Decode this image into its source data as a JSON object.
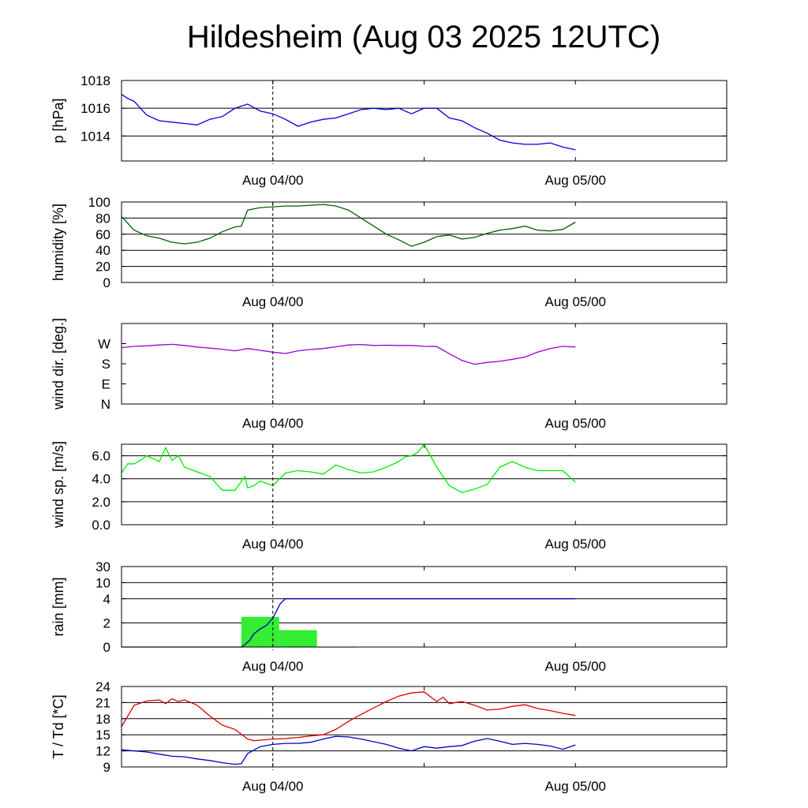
{
  "title": "Hildesheim (Aug 03 2025 12UTC)",
  "colors": {
    "pressure": "#0000dd",
    "humidity": "#006400",
    "wind_dir": "#9900cc",
    "wind_speed": "#00ee00",
    "rain_bar": "#33ee33",
    "rain_line": "#0000aa",
    "temperature": "#dd0000",
    "dewpoint": "#0000cc"
  },
  "chart_data": [
    {
      "type": "line",
      "ylabel": "p [hPa]",
      "ylim": [
        1012.2,
        1018
      ],
      "yticks": [
        "1018",
        "1016",
        "1014"
      ],
      "xticks": [
        "Aug 04/00",
        "Aug 05/00"
      ],
      "xlim_hours": [
        -12,
        36
      ],
      "series": [
        {
          "key": "pressure",
          "x": [
            -12,
            -11.5,
            -11,
            -10.5,
            -10,
            -9,
            -8,
            -7,
            -6,
            -5,
            -4,
            -3,
            -2,
            -1,
            0,
            1,
            2,
            3,
            4,
            5,
            6,
            7,
            8,
            9,
            10,
            11,
            12,
            13,
            14,
            15,
            16,
            17,
            18,
            19,
            20,
            21,
            22,
            23,
            24
          ],
          "values": [
            1017.0,
            1016.7,
            1016.5,
            1016.0,
            1015.5,
            1015.1,
            1015.0,
            1014.9,
            1014.8,
            1015.2,
            1015.4,
            1016.0,
            1016.3,
            1015.8,
            1015.6,
            1015.2,
            1014.7,
            1015.0,
            1015.2,
            1015.3,
            1015.6,
            1015.9,
            1016.0,
            1015.9,
            1016.0,
            1015.6,
            1016.0,
            1016.0,
            1015.3,
            1015.1,
            1014.6,
            1014.2,
            1013.7,
            1013.5,
            1013.4,
            1013.4,
            1013.5,
            1013.2,
            1013.0
          ]
        }
      ]
    },
    {
      "type": "line",
      "ylabel": "humidity [%]",
      "ylim": [
        0,
        100
      ],
      "yticks": [
        "100",
        "80",
        "60",
        "40",
        "20",
        "0"
      ],
      "xticks": [
        "Aug 04/00",
        "Aug 05/00"
      ],
      "xlim_hours": [
        -12,
        36
      ],
      "series": [
        {
          "key": "humidity",
          "x": [
            -12,
            -11,
            -10,
            -9,
            -8,
            -7,
            -6,
            -5,
            -4,
            -3,
            -2.5,
            -2,
            -1,
            0,
            1,
            2,
            3,
            4,
            5,
            6,
            7,
            8,
            9,
            10,
            11,
            12,
            13,
            14,
            15,
            16,
            17,
            18,
            19,
            20,
            21,
            22,
            23,
            24
          ],
          "values": [
            82,
            65,
            58,
            55,
            50,
            48,
            50,
            55,
            63,
            69,
            70,
            90,
            93,
            94,
            95,
            95,
            96,
            97,
            95,
            90,
            80,
            70,
            60,
            53,
            45,
            50,
            57,
            59,
            54,
            56,
            61,
            65,
            67,
            70,
            65,
            64,
            66,
            75
          ]
        }
      ]
    },
    {
      "type": "line",
      "ylabel": "wind dir. [deg.]",
      "ylim": [
        0,
        360
      ],
      "yticks": [
        "W",
        "S",
        "E",
        "N"
      ],
      "xticks": [
        "Aug 04/00",
        "Aug 05/00"
      ],
      "xlim_hours": [
        -12,
        36
      ],
      "series": [
        {
          "key": "wind_dir",
          "x": [
            -12,
            -11,
            -10,
            -9,
            -8,
            -7,
            -6,
            -5,
            -4,
            -3,
            -2,
            -1,
            0,
            1,
            2,
            3,
            4,
            5,
            6,
            7,
            8,
            9,
            10,
            11,
            12,
            13,
            14,
            15,
            16,
            17,
            18,
            19,
            20,
            21,
            22,
            23,
            24
          ],
          "values": [
            252,
            258,
            260,
            264,
            267,
            262,
            255,
            250,
            245,
            238,
            248,
            240,
            232,
            226,
            238,
            244,
            248,
            256,
            264,
            266,
            262,
            263,
            262,
            262,
            258,
            257,
            225,
            195,
            178,
            186,
            191,
            200,
            210,
            232,
            248,
            258,
            255
          ]
        }
      ]
    },
    {
      "type": "line",
      "ylabel": "wind sp. [m/s]",
      "ylim": [
        0,
        7
      ],
      "yticks": [
        "6.0",
        "4.0",
        "2.0",
        "0.0"
      ],
      "xticks": [
        "Aug 04/00",
        "Aug 05/00"
      ],
      "xlim_hours": [
        -12,
        36
      ],
      "series": [
        {
          "key": "wind_speed",
          "x": [
            -12,
            -11.5,
            -11,
            -10.5,
            -10,
            -9,
            -8.5,
            -8,
            -7.5,
            -7,
            -6,
            -5,
            -4,
            -3,
            -2.2,
            -2,
            -1.5,
            -1,
            0,
            1,
            2,
            3,
            4,
            5,
            6,
            7,
            8,
            9,
            10,
            10.5,
            11,
            11.5,
            12,
            13,
            14,
            15,
            16,
            17,
            18,
            19,
            20,
            21,
            22,
            23,
            24
          ],
          "values": [
            4.5,
            5.3,
            5.3,
            5.6,
            6.0,
            5.5,
            6.7,
            5.6,
            6.0,
            5.0,
            4.6,
            4.2,
            3.0,
            3.0,
            4.2,
            3.2,
            3.4,
            3.8,
            3.4,
            4.5,
            4.7,
            4.6,
            4.4,
            5.2,
            4.8,
            4.5,
            4.6,
            5.0,
            5.5,
            5.9,
            6.0,
            6.3,
            7.0,
            5.0,
            3.4,
            2.8,
            3.1,
            3.5,
            5.0,
            5.5,
            5.0,
            4.7,
            4.7,
            4.7,
            3.7
          ]
        }
      ]
    },
    {
      "type": "bar",
      "ylabel": "rain [mm]",
      "ylim": [
        0,
        30
      ],
      "yticks": [
        "30",
        "10",
        "4",
        "2",
        "0"
      ],
      "xticks": [
        "Aug 04/00",
        "Aug 05/00"
      ],
      "xlim_hours": [
        -12,
        36
      ],
      "bars": [
        {
          "from": -2.5,
          "to": 0.5,
          "value": 2.5
        },
        {
          "from": 0.5,
          "to": 3.5,
          "value": 1.4
        },
        {
          "from": 3.5,
          "to": 6.5,
          "value": 0.02
        }
      ],
      "series": [
        {
          "key": "rain_line",
          "x": [
            -12,
            -2.5,
            -2.2,
            -1.8,
            -1.5,
            -1.0,
            -0.5,
            0,
            0.3,
            0.6,
            1.0,
            3.0,
            24
          ],
          "values": [
            0,
            0,
            0.2,
            0.6,
            1.1,
            1.5,
            1.8,
            2.4,
            3.0,
            3.6,
            4.0,
            4.0,
            4.0
          ]
        }
      ]
    },
    {
      "type": "line",
      "ylabel": "T / Td [*C]",
      "ylim": [
        9,
        24
      ],
      "yticks": [
        "24",
        "21",
        "18",
        "15",
        "12",
        "9"
      ],
      "xticks": [
        "Aug 04/00",
        "Aug 05/00"
      ],
      "xlim_hours": [
        -12,
        36
      ],
      "series": [
        {
          "key": "temperature",
          "x": [
            -12,
            -11,
            -10,
            -9,
            -8.5,
            -8,
            -7.5,
            -7,
            -6,
            -5,
            -4,
            -3,
            -2,
            -1.5,
            -1,
            0,
            1,
            2,
            3,
            4,
            5,
            6,
            7,
            8,
            9,
            10,
            11,
            12,
            13,
            13.5,
            14,
            15,
            16,
            17,
            18,
            19,
            20,
            21,
            22,
            23,
            24
          ],
          "values": [
            16.5,
            20.5,
            21.3,
            21.5,
            20.8,
            21.7,
            21.2,
            21.5,
            20.5,
            18.5,
            16.8,
            16.0,
            14.2,
            13.9,
            14.0,
            14.2,
            14.3,
            14.5,
            14.8,
            15.0,
            16.0,
            17.5,
            18.8,
            20.0,
            21.2,
            22.2,
            22.8,
            23.0,
            21.2,
            22.0,
            20.8,
            21.2,
            20.5,
            19.6,
            19.8,
            20.3,
            20.6,
            19.9,
            19.5,
            19.0,
            18.6
          ]
        },
        {
          "key": "dewpoint",
          "x": [
            -12,
            -11,
            -10,
            -9,
            -8,
            -7,
            -6,
            -5,
            -4,
            -3,
            -2.5,
            -2,
            -1,
            0,
            1,
            2,
            3,
            4,
            5,
            6,
            7,
            8,
            9,
            10,
            11,
            12,
            13,
            14,
            15,
            16,
            17,
            18,
            19,
            20,
            21,
            22,
            23,
            24
          ],
          "values": [
            12.2,
            12.0,
            11.8,
            11.4,
            11.0,
            10.9,
            10.5,
            10.2,
            9.8,
            9.5,
            9.6,
            11.5,
            12.8,
            13.2,
            13.4,
            13.4,
            13.6,
            14.2,
            14.7,
            14.6,
            14.2,
            13.7,
            13.2,
            12.5,
            12.0,
            12.8,
            12.5,
            12.8,
            13.0,
            13.8,
            14.3,
            13.8,
            13.2,
            13.4,
            13.2,
            12.9,
            12.3,
            13.1
          ]
        }
      ]
    }
  ]
}
